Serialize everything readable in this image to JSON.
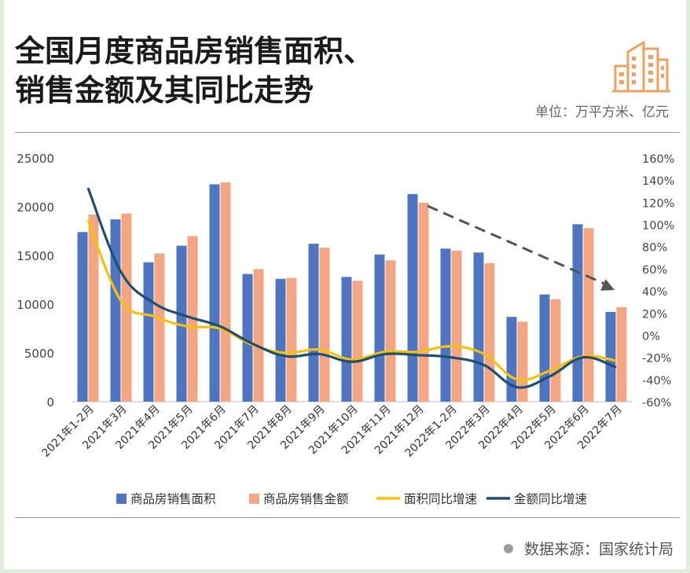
{
  "title": {
    "line1": "全国月度商品房销售面积、",
    "line2": "销售金额及其同比走势"
  },
  "unit_label": "单位：万平方米、亿元",
  "source_label": "数据来源：国家统计局",
  "icons": {
    "logo": "buildings-icon",
    "source": "dot-icon"
  },
  "colors": {
    "area_bar": "#4f74c0",
    "amount_bar": "#f2a684",
    "area_yoy": "#f5c10e",
    "amount_yoy": "#1f4e73",
    "trend_arrow": "#555555",
    "logo": "#f0a060"
  },
  "chart_data": {
    "type": "bar",
    "categories": [
      "2021年1-2月",
      "2021年3月",
      "2021年4月",
      "2021年5月",
      "2021年6月",
      "2021年7月",
      "2021年8月",
      "2021年9月",
      "2021年10月",
      "2021年11月",
      "2021年12月",
      "2022年1-2月",
      "2022年3月",
      "2022年4月",
      "2022年5月",
      "2022年6月",
      "2022年7月"
    ],
    "series": [
      {
        "name": "商品房销售面积",
        "kind": "bar",
        "axis": "left",
        "values": [
          17400,
          18700,
          14300,
          16000,
          22300,
          13100,
          12600,
          16200,
          12800,
          15100,
          21300,
          15700,
          15300,
          8700,
          11000,
          18200,
          9200
        ]
      },
      {
        "name": "商品房销售金额",
        "kind": "bar",
        "axis": "left",
        "values": [
          19200,
          19300,
          15200,
          17000,
          22500,
          13600,
          12700,
          15800,
          12400,
          14500,
          20400,
          15500,
          14200,
          8200,
          10500,
          17800,
          9700
        ]
      },
      {
        "name": "面积同比增速",
        "kind": "line",
        "axis": "right",
        "values": [
          104,
          31,
          17,
          8,
          6,
          -9,
          -16,
          -13,
          -22,
          -15,
          -15,
          -10,
          -17,
          -40,
          -32,
          -19,
          -23
        ]
      },
      {
        "name": "金额同比增速",
        "kind": "line",
        "axis": "right",
        "values": [
          133,
          57,
          29,
          17,
          8,
          -8,
          -19,
          -17,
          -24,
          -17,
          -18,
          -20,
          -27,
          -47,
          -37,
          -20,
          -29
        ]
      }
    ],
    "left_axis": {
      "min": 0,
      "max": 25000,
      "ticks": [
        "0",
        "5000",
        "10000",
        "15000",
        "20000",
        "25000"
      ]
    },
    "right_axis": {
      "min": -60,
      "max": 160,
      "ticks": [
        "-60%",
        "-40%",
        "-20%",
        "0%",
        "20%",
        "40%",
        "60%",
        "80%",
        "100%",
        "120%",
        "140%",
        "160%"
      ]
    },
    "trend_arrow": {
      "from_category": "2021年12月",
      "to_category": "2022年7月",
      "direction": "down"
    },
    "legend": [
      "商品房销售面积",
      "商品房销售金额",
      "面积同比增速",
      "金额同比增速"
    ],
    "legend_position": "bottom",
    "grid": false
  }
}
